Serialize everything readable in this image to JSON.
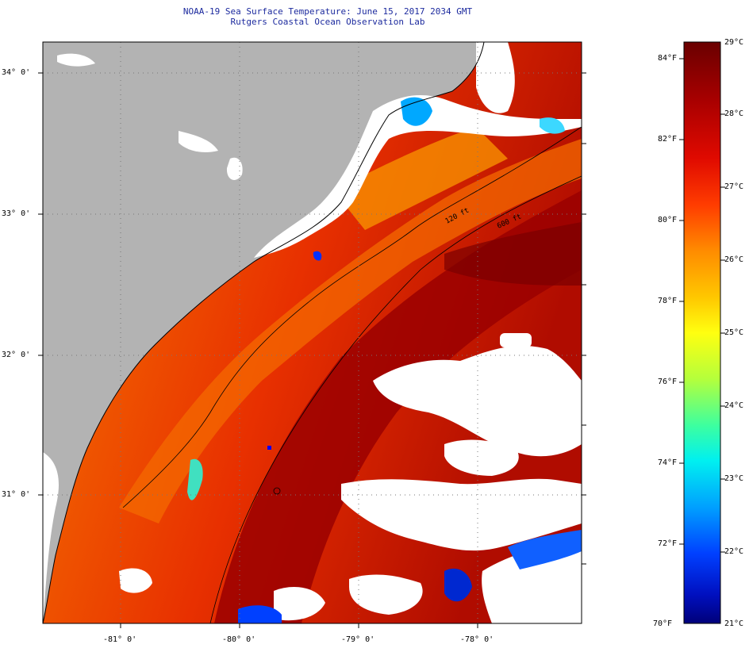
{
  "header": {
    "title": "NOAA-19 Sea Surface Temperature:  June 15, 2017 2034 GMT",
    "subtitle": "Rutgers Coastal Ocean Observation Lab"
  },
  "map": {
    "lat_labels": [
      "34° 0'",
      "33° 0'",
      "32° 0'",
      "31° 0'"
    ],
    "lon_labels": [
      "-81° 0'",
      "-80° 0'",
      "-79° 0'",
      "-78° 0'"
    ],
    "isobaths": [
      "120 ft",
      "600 ft"
    ],
    "colors": {
      "land": "#b3b3b3",
      "cloud": "#ffffff",
      "grid": "#777777"
    }
  },
  "colorbar": {
    "fahrenheit_labels": [
      "84°F",
      "82°F",
      "80°F",
      "78°F",
      "76°F",
      "74°F",
      "72°F",
      "70°F"
    ],
    "celsius_labels": [
      "29°C",
      "28°C",
      "27°C",
      "26°C",
      "25°C",
      "24°C",
      "23°C",
      "22°C",
      "21°C"
    ],
    "colors": [
      "#6e0000",
      "#a00000",
      "#d81000",
      "#ff4a00",
      "#ff9a00",
      "#ffd000",
      "#ffff00",
      "#a8ff3a",
      "#3cffa0",
      "#00e6ff",
      "#0094ff",
      "#0032ff",
      "#00008a"
    ]
  }
}
